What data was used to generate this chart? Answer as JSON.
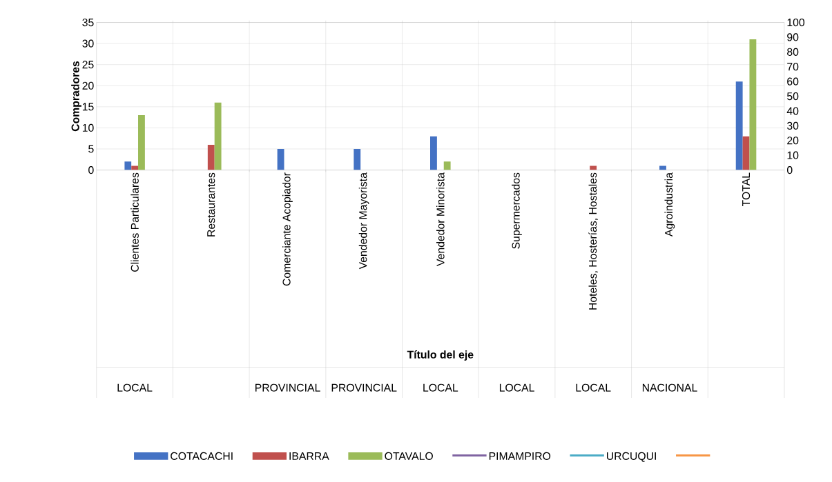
{
  "chart_data": {
    "type": "bar",
    "xlabel": "Título del eje",
    "ylabel": "Compradores",
    "categories": [
      "Clientes Particulares",
      "Restaurantes",
      "Comerciante Acopiador",
      "Vendedor Mayorista",
      "Vendedor Minorista",
      "Supermercados",
      "Hoteles, Hosterías, Hostales",
      "Agroindustria",
      "TOTAL"
    ],
    "series": [
      {
        "name": "COTACACHI",
        "color": "#4472c4",
        "values": [
          2,
          0,
          5,
          5,
          8,
          0,
          0,
          1,
          21
        ]
      },
      {
        "name": "IBARRA",
        "color": "#c0504d",
        "values": [
          1,
          6,
          0,
          0,
          0,
          0,
          1,
          0,
          8
        ]
      },
      {
        "name": "OTAVALO",
        "color": "#9bbb59",
        "values": [
          13,
          16,
          0,
          0,
          2,
          0,
          0,
          0,
          31
        ]
      },
      {
        "name": "PIMAMPIRO",
        "type": "line",
        "color": "#8064a2",
        "values": [
          null,
          null,
          null,
          null,
          null,
          null,
          null,
          null,
          null
        ]
      },
      {
        "name": "URCUQUI",
        "type": "line",
        "color": "#4bacc6",
        "values": [
          null,
          null,
          null,
          null,
          null,
          null,
          null,
          null,
          null
        ]
      },
      {
        "type": "line",
        "color": "#f79646",
        "values": [
          null,
          null,
          null,
          null,
          null,
          null,
          null,
          null,
          null
        ]
      }
    ],
    "ylim": [
      0,
      35
    ],
    "yticks": [
      0,
      5,
      10,
      15,
      20,
      25,
      30,
      35
    ],
    "y2lim": [
      0,
      100
    ],
    "y2ticks": [
      0,
      10,
      20,
      30,
      40,
      50,
      60,
      70,
      80,
      90,
      100
    ],
    "annotations": [
      "LOCAL",
      "PROVINCIAL",
      "PROVINCIAL",
      "LOCAL",
      "LOCAL",
      "LOCAL",
      "NACIONAL"
    ],
    "grid": true,
    "legend": "bottom"
  }
}
